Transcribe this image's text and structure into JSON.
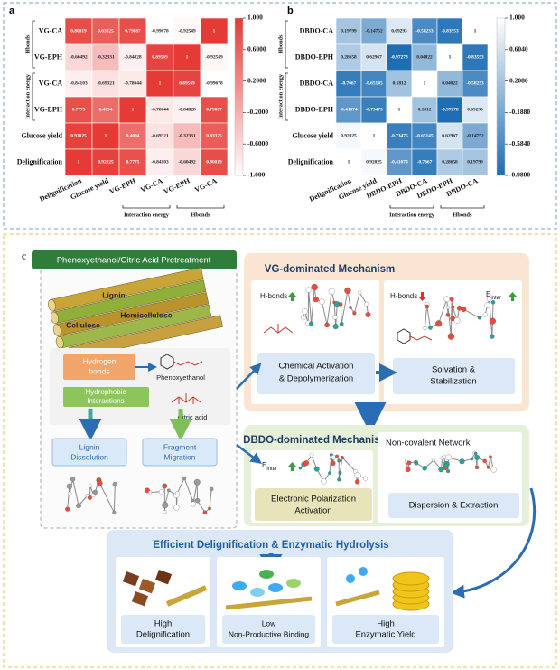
{
  "heatmaps": [
    {
      "label": "a",
      "rows": [
        "VG-CA",
        "VG-EPH",
        "VG-CA",
        "VG-EPH",
        "Glucose yield",
        "Delignification"
      ],
      "columns": [
        "Delignification",
        "Glucose yield",
        "VG-EPH",
        "VG-CA",
        "VG-EPH",
        "VG-CA"
      ],
      "row_groups": [
        "Hbonds",
        "Interaction energy"
      ],
      "column_groups": [
        "Interaction energy",
        "Hbonds"
      ],
      "values": [
        [
          0.80019,
          0.63325,
          0.79087,
          -0.99678,
          -0.92549,
          1
        ],
        [
          -0.60492,
          -0.32331,
          -0.84828,
          0.89569,
          1,
          -0.92549
        ],
        [
          -0.84103,
          -0.69321,
          -0.78644,
          1,
          0.89569,
          -0.99678
        ],
        [
          0.7775,
          0.4694,
          1,
          -0.78644,
          -0.84828,
          0.79087
        ],
        [
          0.92025,
          1,
          0.4694,
          -0.69321,
          -0.32331,
          0.63325
        ],
        [
          1,
          0.92025,
          0.7775,
          -0.84103,
          -0.60492,
          0.80019
        ]
      ],
      "colorbar": {
        "lim": [
          -1,
          1
        ],
        "colors": [
          "#ffffff",
          "#e53a35"
        ],
        "ticks": [
          {
            "value": 1,
            "label": "1.000"
          },
          {
            "value": 0.6,
            "label": "0.6000"
          },
          {
            "value": 0.2,
            "label": "0.2000"
          },
          {
            "value": -0.2,
            "label": "-0.2000"
          },
          {
            "value": -0.6,
            "label": "-0.6000"
          },
          {
            "value": -1,
            "label": "-1.000"
          }
        ]
      }
    },
    {
      "label": "b",
      "rows": [
        "DBDO-CA",
        "DBDO-EPH",
        "DBDO-CA",
        "DBDO-EPH",
        "Glucose yield",
        "Delignification"
      ],
      "columns": [
        "Delignification",
        "Glucose yield",
        "DBDO-EPH",
        "DBDO-CA",
        "DBDO-EPH",
        "DBDO-CA"
      ],
      "row_groups": [
        "Hbonds",
        "Interaction energy"
      ],
      "column_groups": [
        "Interaction energy",
        "Hbonds"
      ],
      "values": [
        [
          0.19799,
          -0.14752,
          0.69293,
          -0.58233,
          -0.83553,
          1
        ],
        [
          0.28658,
          0.62967,
          -0.97278,
          0.04022,
          1,
          -0.83553
        ],
        [
          -0.7667,
          -0.65145,
          0.1812,
          1,
          0.04022,
          -0.58233
        ],
        [
          -0.41074,
          -0.73475,
          1,
          0.1812,
          -0.97278,
          0.69293
        ],
        [
          0.92025,
          1,
          -0.73475,
          -0.65145,
          0.62967,
          -0.14752
        ],
        [
          1,
          0.92025,
          -0.41074,
          -0.7667,
          0.28658,
          0.19799
        ]
      ],
      "colorbar": {
        "lim": [
          -0.98,
          1
        ],
        "colors": [
          "#1e6db3",
          "#ffffff"
        ],
        "ticks": [
          {
            "value": 1,
            "label": "1.000"
          },
          {
            "value": 0.604,
            "label": "0.6040"
          },
          {
            "value": 0.208,
            "label": "0.2080"
          },
          {
            "value": -0.188,
            "label": "-0.1880"
          },
          {
            "value": -0.584,
            "label": "-0.5840"
          },
          {
            "value": -0.98,
            "label": "-0.9800"
          }
        ]
      }
    }
  ],
  "diagram": {
    "label": "c",
    "pretreatment": {
      "title": "Phenoxyethanol/Citric Acid Pretreatment",
      "biomass": [
        "Lignin",
        "Hemicellulose",
        "Cellulose"
      ],
      "hydrogen_bonds": [
        "Hydrogen",
        "bonds"
      ],
      "hydrophobic": [
        "Hydrophobic",
        "Interactions"
      ],
      "phenoxyethanol": "Phenoxyethanol",
      "citric_acid": "Citric acid",
      "dissolution": [
        "Lignin",
        "Dissolution"
      ],
      "migration": [
        "Fragment",
        "Migration"
      ]
    },
    "vg": {
      "title": "VG-dominated Mechanism",
      "hbonds_left": "H-bonds",
      "hbonds_right": "H-bonds",
      "e_inter": {
        "symbol": "E",
        "subscript": "inter"
      },
      "activation": [
        "Chemical Activation",
        "& Depolymerization"
      ],
      "solvation": [
        "Solvation &",
        "Stabilization"
      ]
    },
    "dbdo": {
      "title": "DBDO-dominated Mechanism",
      "e_inter": {
        "symbol": "E",
        "subscript": "inter"
      },
      "network": "Non-covalent Network",
      "polarization": [
        "Electronic Polarization",
        "Activation"
      ],
      "dispersion": "Dispersion & Extraction"
    },
    "outcome": {
      "title": "Efficient Delignification & Enzymatic Hydrolysis",
      "results": [
        [
          "High",
          "Delignification"
        ],
        [
          "Low",
          "Non-Productive Binding"
        ],
        [
          "High",
          "Enzymatic Yield"
        ]
      ]
    }
  }
}
